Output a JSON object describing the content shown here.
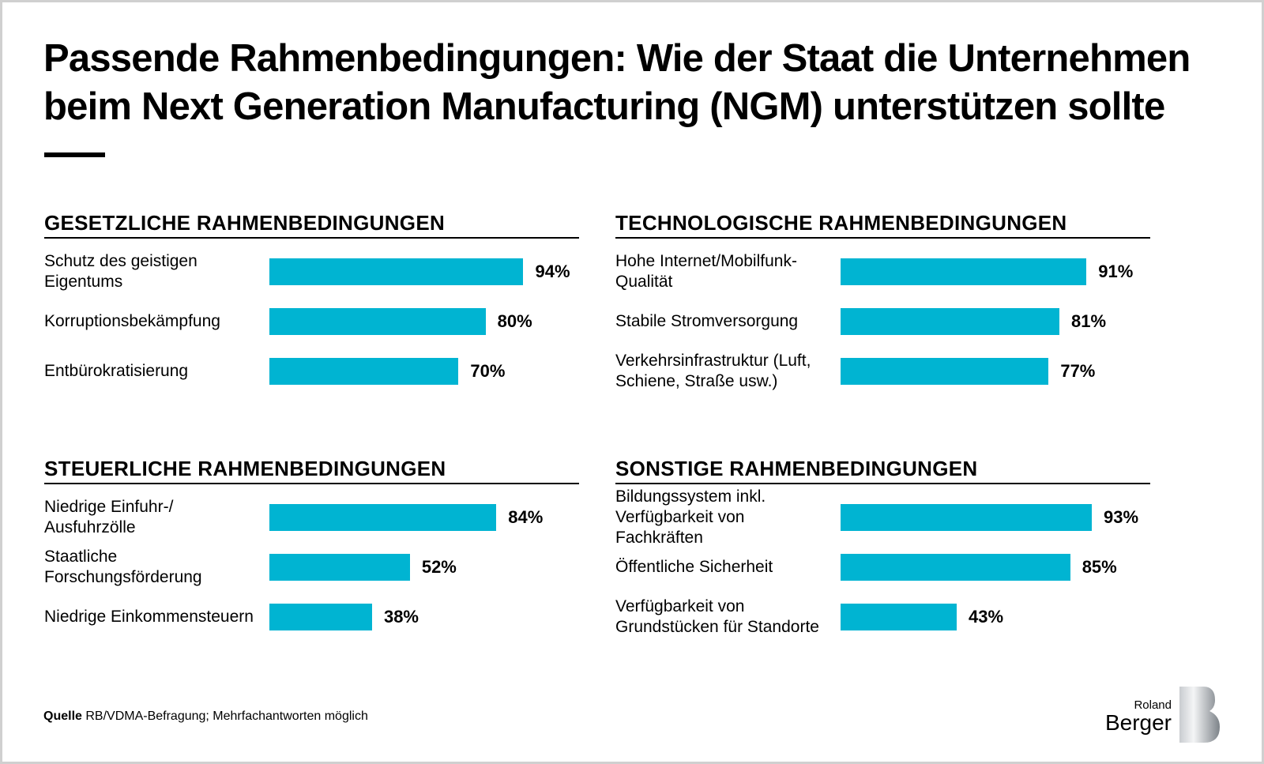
{
  "title_line1": "Passende Rahmenbedingungen: Wie der Staat die Unternehmen",
  "title_line2": "beim Next Generation Manufacturing (NGM) unterstützen sollte",
  "source_label": "Quelle",
  "source_text": " RB/VDMA-Befragung; Mehrfachantworten möglich",
  "logo": "Roland Berger",
  "bar_color": "#00b4d2",
  "chart_data": [
    {
      "type": "bar",
      "orientation": "horizontal",
      "title": "GESETZLICHE RAHMENBEDINGUNGEN",
      "categories": [
        "Schutz des geistigen Eigentums",
        "Korruptionsbekämpfung",
        "Entbürokratisierung"
      ],
      "values": [
        94,
        80,
        70
      ],
      "labels": [
        "94%",
        "80%",
        "70%"
      ],
      "xlim": [
        0,
        100
      ]
    },
    {
      "type": "bar",
      "orientation": "horizontal",
      "title": "TECHNOLOGISCHE RAHMENBEDINGUNGEN",
      "categories": [
        "Hohe Internet/Mobilfunk-Qualität",
        "Stabile Stromversorgung",
        "Verkehrsinfrastruktur (Luft, Schiene, Straße usw.)"
      ],
      "values": [
        91,
        81,
        77
      ],
      "labels": [
        "91%",
        "81%",
        "77%"
      ],
      "xlim": [
        0,
        100
      ]
    },
    {
      "type": "bar",
      "orientation": "horizontal",
      "title": "STEUERLICHE RAHMENBEDINGUNGEN",
      "categories": [
        "Niedrige Einfuhr-/ Ausfuhrzölle",
        "Staatliche Forschungsförderung",
        "Niedrige Einkommensteuern"
      ],
      "values": [
        84,
        52,
        38
      ],
      "labels": [
        "84%",
        "52%",
        "38%"
      ],
      "xlim": [
        0,
        100
      ]
    },
    {
      "type": "bar",
      "orientation": "horizontal",
      "title": "SONSTIGE RAHMENBEDINGUNGEN",
      "categories": [
        "Bildungssystem inkl. Verfügbarkeit von Fachkräften",
        "Öffentliche Sicherheit",
        "Verfügbarkeit von Grundstücken für Standorte"
      ],
      "values": [
        93,
        85,
        43
      ],
      "labels": [
        "93%",
        "85%",
        "43%"
      ],
      "xlim": [
        0,
        100
      ]
    }
  ]
}
